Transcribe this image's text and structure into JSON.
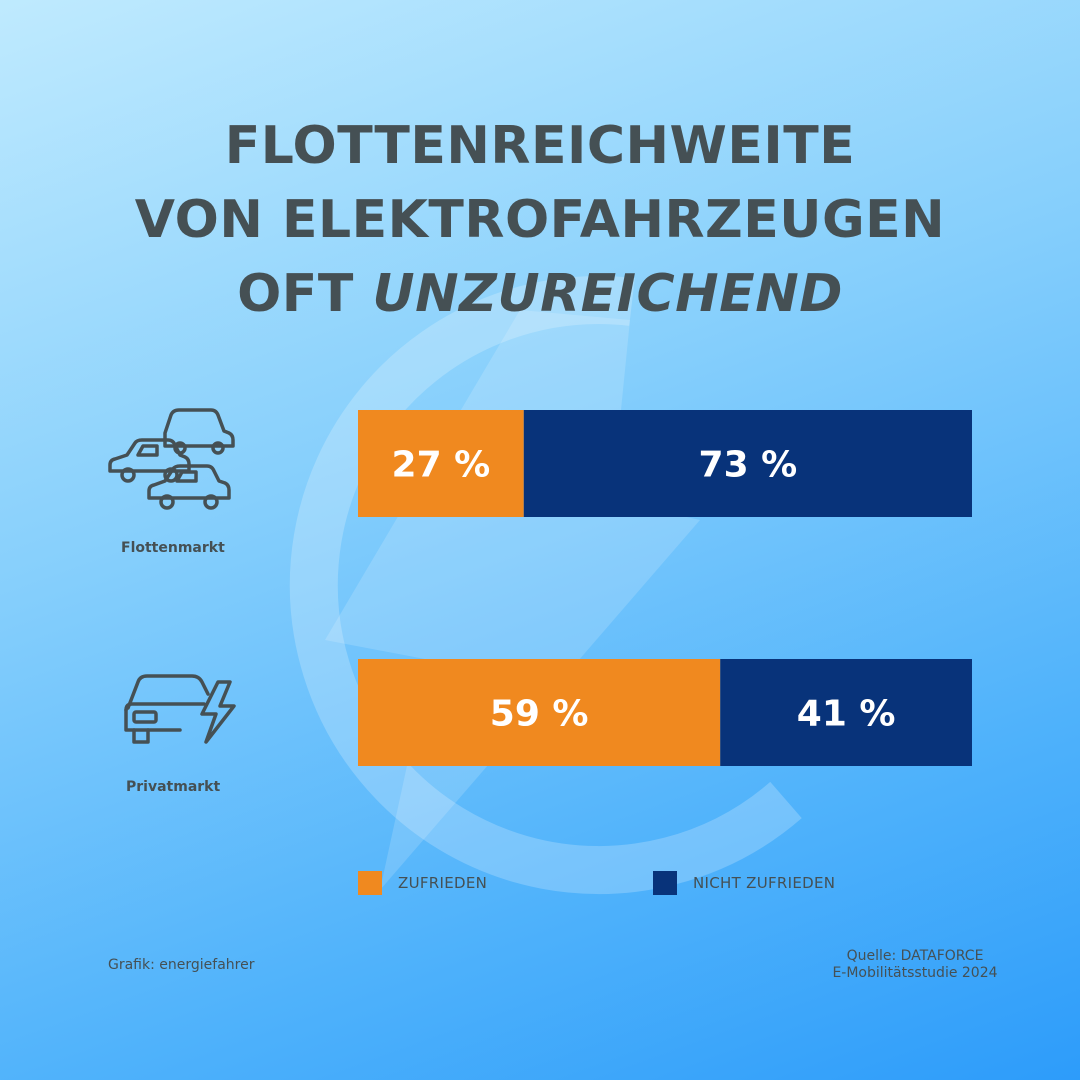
{
  "title": {
    "line1": "FLOTTENREICHWEITE",
    "line2": "VON ELEKTROFAHRZEUGEN",
    "line3_normal": "OFT ",
    "line3_italic": "UNZUREICHEND"
  },
  "chart_data": {
    "type": "bar",
    "orientation": "horizontal",
    "stacked": true,
    "unit": "%",
    "categories": [
      "Flottenmarkt",
      "Privatmarkt"
    ],
    "series": [
      {
        "name": "ZUFRIEDEN",
        "values": [
          27,
          59
        ],
        "labels": [
          "27 %",
          "59 %"
        ],
        "color": "#f0891f"
      },
      {
        "name": "NICHT ZUFRIEDEN",
        "values": [
          73,
          41
        ],
        "labels": [
          "73 %",
          "41 %"
        ],
        "color": "#08337a"
      }
    ],
    "xlim": [
      0,
      100
    ],
    "grid": false,
    "legend_position": "bottom"
  },
  "icons": {
    "flotten": "three-cars-icon",
    "privat": "electric-car-icon",
    "background": "lightning-circle-logo"
  },
  "footer": {
    "left": "Grafik: energiefahrer",
    "right_line1": "Quelle: DATAFORCE",
    "right_line2": "E-Mobilitätsstudie 2024"
  }
}
